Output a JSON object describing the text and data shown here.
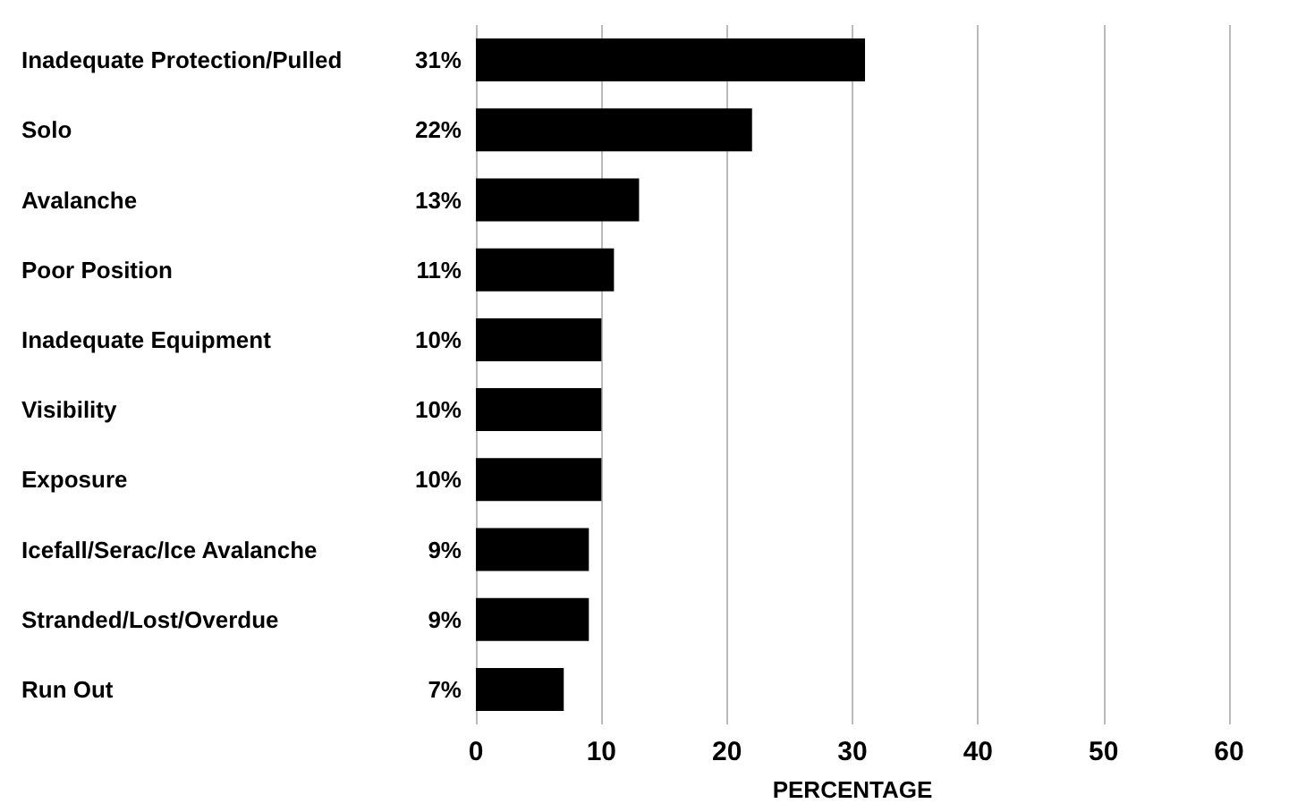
{
  "chart_data": {
    "type": "bar",
    "orientation": "horizontal",
    "xlabel": "PERCENTAGE",
    "categories": [
      "Inadequate Protection/Pulled",
      "Solo",
      "Avalanche",
      "Poor Position",
      "Inadequate Equipment",
      "Visibility",
      "Exposure",
      "Icefall/Serac/Ice Avalanche",
      "Stranded/Lost/Overdue",
      "Run Out"
    ],
    "values": [
      31,
      22,
      13,
      11,
      10,
      10,
      10,
      9,
      9,
      7
    ],
    "value_labels": [
      "31%",
      "22%",
      "13%",
      "11%",
      "10%",
      "10%",
      "10%",
      "9%",
      "9%",
      "7%"
    ],
    "color": "#000000",
    "xlim": [
      0,
      60
    ],
    "xticks": [
      0,
      10,
      20,
      30,
      40,
      50,
      60
    ],
    "grid": "x"
  }
}
